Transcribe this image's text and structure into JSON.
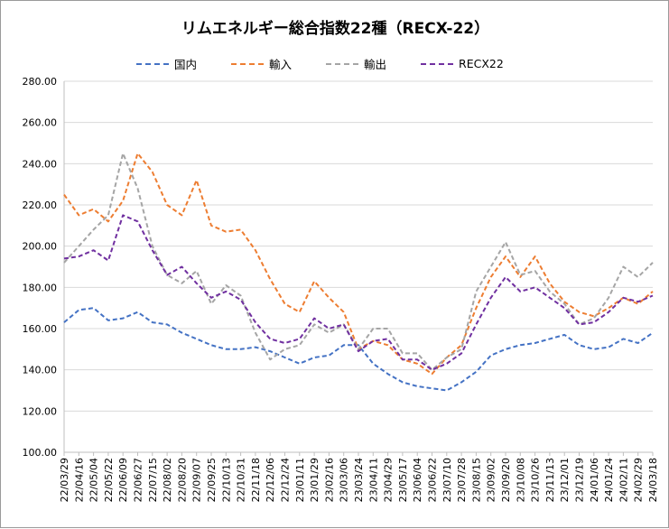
{
  "chart_data": {
    "type": "line",
    "title": "リムエネルギー総合指数22種（RECX-22）",
    "ylim": [
      100,
      280
    ],
    "yticks": [
      "100.00",
      "120.00",
      "140.00",
      "160.00",
      "180.00",
      "200.00",
      "220.00",
      "240.00",
      "260.00",
      "280.00"
    ],
    "grid": "horizontal",
    "legend_position": "top",
    "categories": [
      "22/03/29",
      "22/04/16",
      "22/05/04",
      "22/05/22",
      "22/06/09",
      "22/06/27",
      "22/07/15",
      "22/08/02",
      "22/08/20",
      "22/09/07",
      "22/09/25",
      "22/10/13",
      "22/10/31",
      "22/11/18",
      "22/12/06",
      "22/12/24",
      "23/01/11",
      "23/01/29",
      "23/02/16",
      "23/03/06",
      "23/03/24",
      "23/04/11",
      "23/04/29",
      "23/05/17",
      "23/06/04",
      "23/06/22",
      "23/07/10",
      "23/07/28",
      "23/08/15",
      "23/09/02",
      "23/09/20",
      "23/10/08",
      "23/10/26",
      "23/11/13",
      "23/12/01",
      "23/12/19",
      "24/01/06",
      "24/01/24",
      "24/02/11",
      "24/02/29",
      "24/03/18"
    ],
    "series": [
      {
        "name": "国内",
        "color": "#4472C4",
        "values": [
          163,
          169,
          170,
          164,
          165,
          168,
          163,
          162,
          158,
          155,
          152,
          150,
          150,
          151,
          149,
          146,
          143,
          146,
          147,
          152,
          152,
          143,
          138,
          134,
          132,
          131,
          130,
          134,
          139,
          147,
          150,
          152,
          153,
          155,
          157,
          152,
          150,
          151,
          155,
          153,
          158
        ]
      },
      {
        "name": "輸入",
        "color": "#ED7D31",
        "values": [
          225,
          215,
          218,
          212,
          222,
          245,
          236,
          220,
          215,
          232,
          210,
          207,
          208,
          198,
          184,
          172,
          168,
          183,
          175,
          168,
          150,
          154,
          152,
          145,
          143,
          138,
          146,
          152,
          170,
          185,
          195,
          185,
          195,
          182,
          173,
          168,
          166,
          170,
          175,
          172,
          178
        ]
      },
      {
        "name": "輸出",
        "color": "#A5A5A5",
        "values": [
          192,
          200,
          208,
          215,
          245,
          228,
          200,
          186,
          182,
          188,
          172,
          181,
          176,
          158,
          145,
          150,
          152,
          162,
          158,
          162,
          150,
          160,
          160,
          148,
          148,
          140,
          146,
          150,
          178,
          190,
          202,
          186,
          188,
          178,
          172,
          162,
          165,
          175,
          190,
          185,
          192
        ]
      },
      {
        "name": "RECX22",
        "color": "#7030A0",
        "values": [
          194,
          195,
          198,
          193,
          215,
          212,
          198,
          186,
          190,
          182,
          175,
          178,
          174,
          163,
          155,
          153,
          155,
          165,
          160,
          162,
          149,
          154,
          155,
          145,
          145,
          140,
          143,
          148,
          162,
          175,
          185,
          178,
          180,
          175,
          170,
          162,
          163,
          168,
          175,
          173,
          176
        ]
      }
    ]
  }
}
